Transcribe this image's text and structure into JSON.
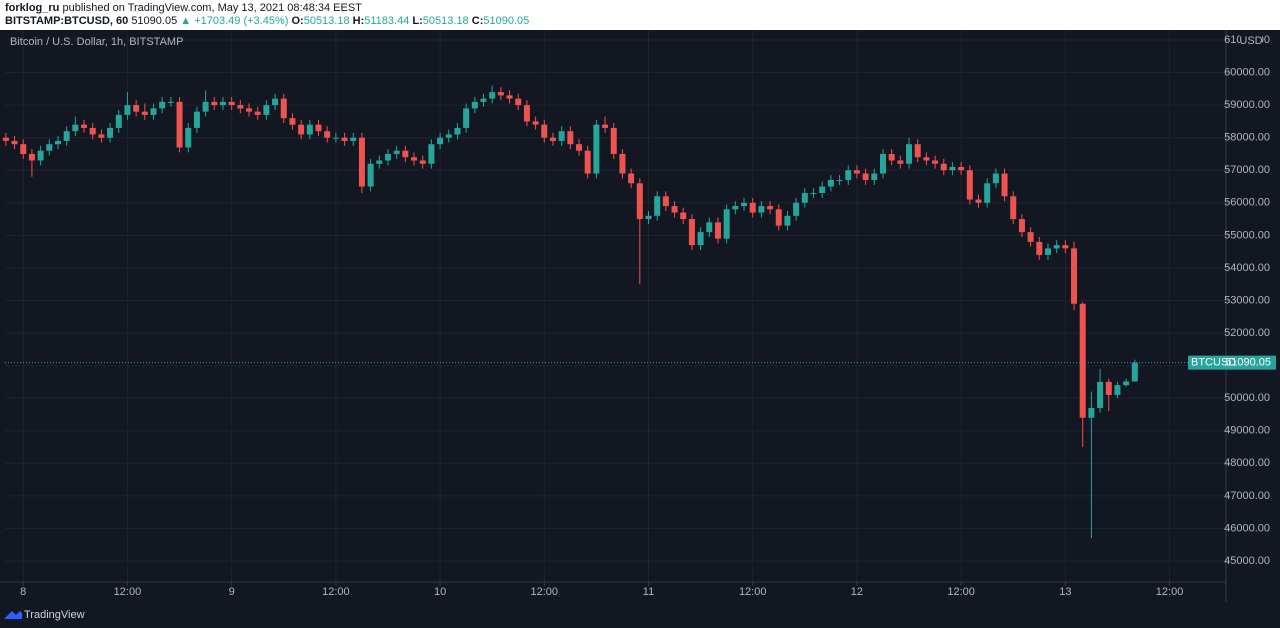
{
  "header": {
    "author": "forklog_ru",
    "published": "published on TradingView.com, May 13, 2021 08:48:34 EEST",
    "symbol": "BITSTAMP:BTCUSD, 60",
    "change": "▲ +1703.49 (+3.45%)",
    "o": "O:",
    "h": "H:",
    "l": "L:",
    "c": "C:"
  },
  "chart_data": {
    "type": "candlestick",
    "title": "Bitcoin / U.S. Dollar, 1h, BITSTAMP",
    "currency": "USD",
    "series_name": "BTCUSD",
    "up_color": "#26a69a",
    "down_color": "#ef5350",
    "grid": true,
    "xlim": [
      -2.1,
      138.5
    ],
    "ylim": [
      44354,
      61246
    ],
    "xticks": [
      {
        "value": 0,
        "label": "8"
      },
      {
        "value": 12,
        "label": "12:00"
      },
      {
        "value": 24,
        "label": "9"
      },
      {
        "value": 36,
        "label": "12:00"
      },
      {
        "value": 48,
        "label": "10"
      },
      {
        "value": 60,
        "label": "12:00"
      },
      {
        "value": 72,
        "label": "11"
      },
      {
        "value": 84,
        "label": "12:00"
      },
      {
        "value": 96,
        "label": "12"
      },
      {
        "value": 108,
        "label": "12:00"
      },
      {
        "value": 120,
        "label": "13"
      },
      {
        "value": 132,
        "label": "12:00"
      }
    ],
    "yticks": [
      {
        "value": 45000,
        "label": "45000.00"
      },
      {
        "value": 46000,
        "label": "46000.00"
      },
      {
        "value": 47000,
        "label": "47000.00"
      },
      {
        "value": 48000,
        "label": "48000.00"
      },
      {
        "value": 49000,
        "label": "49000.00"
      },
      {
        "value": 50000,
        "label": "50000.00"
      },
      {
        "value": 51000,
        "label": "51000.00"
      },
      {
        "value": 52000,
        "label": "52000.00"
      },
      {
        "value": 53000,
        "label": "53000.00"
      },
      {
        "value": 54000,
        "label": "54000.00"
      },
      {
        "value": 55000,
        "label": "55000.00"
      },
      {
        "value": 56000,
        "label": "56000.00"
      },
      {
        "value": 57000,
        "label": "57000.00"
      },
      {
        "value": 58000,
        "label": "58000.00"
      },
      {
        "value": 59000,
        "label": "59000.00"
      },
      {
        "value": 60000,
        "label": "60000.00"
      },
      {
        "value": 61000,
        "label": "61000.00"
      }
    ],
    "x": [
      -2,
      -1,
      0,
      1,
      2,
      3,
      4,
      5,
      6,
      7,
      8,
      9,
      10,
      11,
      12,
      13,
      14,
      15,
      16,
      17,
      18,
      19,
      20,
      21,
      22,
      23,
      24,
      25,
      26,
      27,
      28,
      29,
      30,
      31,
      32,
      33,
      34,
      35,
      36,
      37,
      38,
      39,
      40,
      41,
      42,
      43,
      44,
      45,
      46,
      47,
      48,
      49,
      50,
      51,
      52,
      53,
      54,
      55,
      56,
      57,
      58,
      59,
      60,
      61,
      62,
      63,
      64,
      65,
      66,
      67,
      68,
      69,
      70,
      71,
      72,
      73,
      74,
      75,
      76,
      77,
      78,
      79,
      80,
      81,
      82,
      83,
      84,
      85,
      86,
      87,
      88,
      89,
      90,
      91,
      92,
      93,
      94,
      95,
      96,
      97,
      98,
      99,
      100,
      101,
      102,
      103,
      104,
      105,
      106,
      107,
      108,
      109,
      110,
      111,
      112,
      113,
      114,
      115,
      116,
      117,
      118,
      119,
      120,
      121,
      122,
      123,
      124,
      125,
      126,
      127,
      128
    ],
    "open": [
      58000,
      57900,
      57800,
      57500,
      57300,
      57600,
      57800,
      57900,
      58200,
      58400,
      58300,
      58100,
      58000,
      58300,
      58700,
      59000,
      58800,
      58700,
      58900,
      59100,
      59100,
      57700,
      58300,
      58800,
      59100,
      59000,
      59100,
      59000,
      58900,
      58800,
      58700,
      59000,
      59200,
      58600,
      58400,
      58100,
      58400,
      58200,
      58000,
      58000,
      57900,
      58000,
      56500,
      57200,
      57300,
      57500,
      57600,
      57400,
      57300,
      57200,
      57800,
      58000,
      58100,
      58300,
      58900,
      59100,
      59200,
      59400,
      59300,
      59200,
      59000,
      58500,
      58400,
      58000,
      57900,
      58200,
      57800,
      57600,
      56900,
      58400,
      58300,
      57500,
      56900,
      56600,
      55500,
      55600,
      56200,
      55900,
      55700,
      55500,
      54700,
      55100,
      55400,
      54900,
      55800,
      55900,
      56000,
      55700,
      55900,
      55800,
      55300,
      55600,
      56000,
      56300,
      56300,
      56500,
      56700,
      56700,
      57000,
      56900,
      56700,
      56900,
      57500,
      57300,
      57200,
      57800,
      57400,
      57300,
      57200,
      57000,
      57100,
      57000,
      56100,
      56000,
      56600,
      56900,
      56200,
      55500,
      55100,
      54800,
      54400,
      54600,
      54700,
      54600,
      52900,
      49400,
      49700,
      50500,
      50100,
      50400,
      50513.18
    ],
    "high": [
      58150,
      58050,
      57950,
      57650,
      57750,
      57950,
      58050,
      58350,
      58650,
      58550,
      58450,
      58250,
      58450,
      58850,
      59400,
      59150,
      59050,
      59050,
      59250,
      59250,
      59250,
      58450,
      58950,
      59450,
      59250,
      59250,
      59250,
      59150,
      59050,
      58950,
      59150,
      59350,
      59350,
      58750,
      58550,
      58550,
      58550,
      58350,
      58150,
      58150,
      58150,
      58150,
      57350,
      57450,
      57650,
      57750,
      57750,
      57550,
      57450,
      57950,
      58150,
      58250,
      58450,
      59050,
      59250,
      59350,
      59600,
      59550,
      59450,
      59350,
      59150,
      58650,
      58550,
      58150,
      58350,
      58350,
      57950,
      57750,
      58550,
      58650,
      58450,
      57650,
      57050,
      56750,
      55750,
      56350,
      56350,
      56050,
      55850,
      55650,
      55250,
      55550,
      55550,
      55950,
      56050,
      56150,
      56150,
      56050,
      56050,
      55950,
      55750,
      56150,
      56450,
      56450,
      56650,
      56850,
      56850,
      57150,
      57150,
      57050,
      57050,
      57650,
      57650,
      57450,
      58000,
      57950,
      57550,
      57450,
      57350,
      57250,
      57250,
      57150,
      56250,
      56750,
      57050,
      57050,
      56350,
      55650,
      55250,
      54950,
      54750,
      54850,
      54850,
      54800,
      52950,
      50200,
      50900,
      50600,
      50500,
      50600,
      51183.44
    ],
    "low": [
      57750,
      57650,
      57350,
      56800,
      57150,
      57450,
      57650,
      57750,
      58050,
      58150,
      57950,
      57850,
      57850,
      58150,
      58550,
      58650,
      58550,
      58550,
      58750,
      58950,
      57550,
      57550,
      58150,
      58650,
      58850,
      58850,
      58850,
      58750,
      58650,
      58550,
      58550,
      58850,
      58450,
      58250,
      57950,
      57950,
      58050,
      57850,
      57850,
      57750,
      57750,
      56300,
      56350,
      57050,
      57150,
      57350,
      57250,
      57150,
      57050,
      57050,
      57650,
      57850,
      57950,
      58150,
      58750,
      58950,
      59050,
      59150,
      59050,
      58850,
      58350,
      58250,
      57850,
      57750,
      57750,
      57650,
      57450,
      56750,
      56750,
      58150,
      57350,
      56750,
      56450,
      53500,
      55350,
      55450,
      55750,
      55550,
      55350,
      54550,
      54550,
      54950,
      54750,
      54750,
      55650,
      55750,
      55550,
      55550,
      55650,
      55150,
      55150,
      55450,
      55850,
      56150,
      56150,
      56350,
      56550,
      56550,
      56750,
      56550,
      56550,
      56750,
      57150,
      57050,
      57050,
      57250,
      57150,
      57050,
      56850,
      56850,
      56850,
      55950,
      55850,
      55850,
      56450,
      56050,
      55350,
      54950,
      54650,
      54250,
      54250,
      54450,
      54450,
      52700,
      48500,
      45700,
      49550,
      49600,
      50000,
      50350,
      50513.18
    ],
    "close": [
      57900,
      57800,
      57500,
      57300,
      57600,
      57800,
      57900,
      58200,
      58400,
      58300,
      58100,
      58000,
      58300,
      58700,
      59000,
      58800,
      58700,
      58900,
      59100,
      59100,
      57700,
      58300,
      58800,
      59100,
      59000,
      59100,
      59000,
      58900,
      58800,
      58700,
      59000,
      59200,
      58600,
      58400,
      58100,
      58400,
      58200,
      58000,
      58000,
      57900,
      58000,
      56500,
      57200,
      57300,
      57500,
      57600,
      57400,
      57300,
      57200,
      57800,
      58000,
      58100,
      58300,
      58900,
      59100,
      59200,
      59400,
      59300,
      59200,
      59000,
      58500,
      58400,
      58000,
      57900,
      58200,
      57800,
      57600,
      56900,
      58400,
      58300,
      57500,
      56900,
      56600,
      55500,
      55600,
      56200,
      55900,
      55700,
      55500,
      54700,
      55100,
      55400,
      54900,
      55800,
      55900,
      56000,
      55700,
      55900,
      55800,
      55300,
      55600,
      56000,
      56300,
      56300,
      56500,
      56700,
      56700,
      57000,
      56900,
      56700,
      56900,
      57500,
      57300,
      57200,
      57800,
      57400,
      57300,
      57200,
      57000,
      57100,
      57000,
      56100,
      56000,
      56600,
      56900,
      56200,
      55500,
      55100,
      54800,
      54400,
      54600,
      54700,
      54600,
      52900,
      49400,
      49700,
      50500,
      50100,
      50400,
      50513.18,
      51090.05
    ]
  },
  "footer": {
    "brand": "TradingView"
  }
}
